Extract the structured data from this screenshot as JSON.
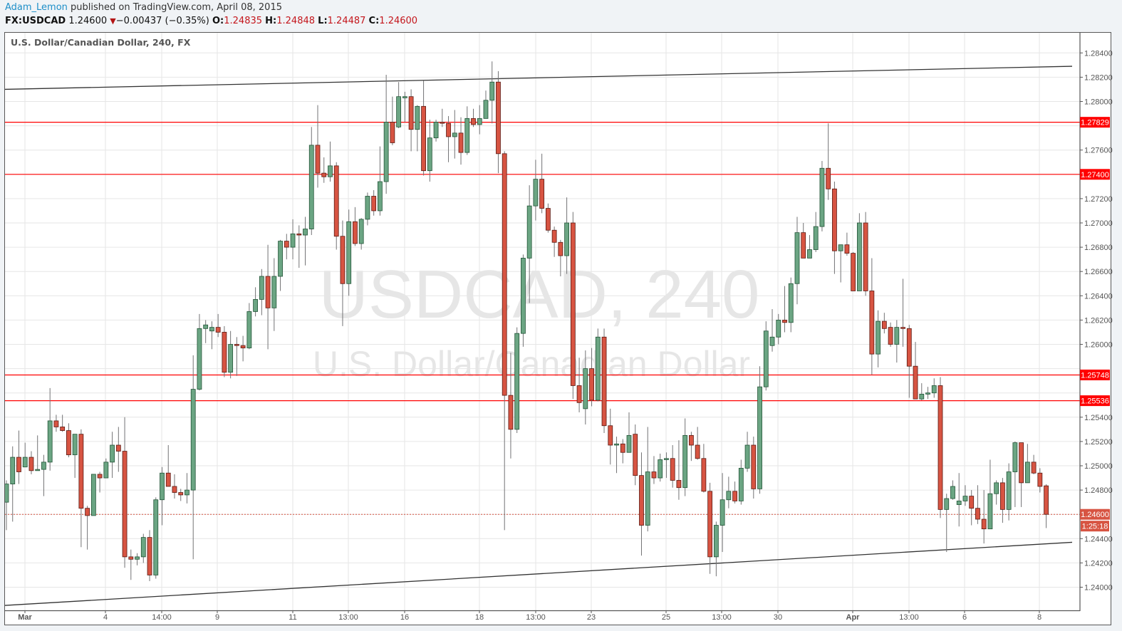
{
  "header": {
    "author": "Adam_Lemon",
    "published": " published on TradingView.com, April 08, 2015",
    "symbol": "FX:USDCAD",
    "last": "1.24600",
    "change": "−0.00437 (−0.35%)",
    "change_direction": "down",
    "o_label": "O:",
    "o": "1.24835",
    "h_label": "H:",
    "h": "1.24848",
    "l_label": "L:",
    "l": "1.24487",
    "c_label": "C:",
    "c": "1.24600"
  },
  "legend": "U.S. Dollar/Canadian Dollar, 240, FX",
  "watermark": {
    "symbol": "USDCAD, 240",
    "description": "U.S. Dollar/Canadian Dollar"
  },
  "colors": {
    "up": "#6ba583",
    "up_border": "#225437",
    "down": "#d75442",
    "down_border": "#5b1a13",
    "wick": "#737375",
    "level": "#ff0000",
    "price_tag": "#d75442"
  },
  "chart_data": {
    "type": "candlestick",
    "interval": "240",
    "ylim": [
      1.2385,
      1.2855
    ],
    "grid": true,
    "y_ticks": [
      "1.24000",
      "1.24200",
      "1.24400",
      "1.24600",
      "1.24800",
      "1.25000",
      "1.25200",
      "1.25400",
      "1.25600",
      "1.25800",
      "1.26000",
      "1.26200",
      "1.26400",
      "1.26600",
      "1.26800",
      "1.27000",
      "1.27200",
      "1.27400",
      "1.27600",
      "1.27800",
      "1.28000",
      "1.28200",
      "1.28400"
    ],
    "x_ticks": [
      {
        "label": "Mar",
        "bold": true
      },
      {
        "label": "4"
      },
      {
        "label": "14:00"
      },
      {
        "label": "9"
      },
      {
        "label": "11"
      },
      {
        "label": "13:00"
      },
      {
        "label": "16"
      },
      {
        "label": "18"
      },
      {
        "label": "13:00"
      },
      {
        "label": "23"
      },
      {
        "label": "25"
      },
      {
        "label": "13:00"
      },
      {
        "label": "30"
      },
      {
        "label": "Apr",
        "bold": true
      },
      {
        "label": "13:00"
      },
      {
        "label": "6"
      },
      {
        "label": "8"
      }
    ],
    "ohlc_fields": [
      "open",
      "high",
      "low",
      "close"
    ],
    "candles": [
      [
        1.247,
        1.2488,
        1.2447,
        1.2485
      ],
      [
        1.2485,
        1.2516,
        1.2454,
        1.2507
      ],
      [
        1.2507,
        1.2529,
        1.2485,
        1.2495
      ],
      [
        1.2499,
        1.2519,
        1.2499,
        1.2507
      ],
      [
        1.2507,
        1.2512,
        1.2493,
        1.2496
      ],
      [
        1.2496,
        1.2525,
        1.2496,
        1.2497
      ],
      [
        1.2497,
        1.2509,
        1.2475,
        1.2503
      ],
      [
        1.2503,
        1.2564,
        1.2496,
        1.2537
      ],
      [
        1.2537,
        1.2542,
        1.2528,
        1.2532
      ],
      [
        1.2532,
        1.2542,
        1.2528,
        1.2529
      ],
      [
        1.2529,
        1.2535,
        1.2507,
        1.2509
      ],
      [
        1.2509,
        1.2526,
        1.249,
        1.2526
      ],
      [
        1.2526,
        1.253,
        1.2433,
        1.2465
      ],
      [
        1.2465,
        1.2467,
        1.2431,
        1.2459
      ],
      [
        1.2459,
        1.2493,
        1.2459,
        1.2493
      ],
      [
        1.2493,
        1.2495,
        1.2478,
        1.249
      ],
      [
        1.249,
        1.2506,
        1.249,
        1.2503
      ],
      [
        1.2503,
        1.2528,
        1.249,
        1.2517
      ],
      [
        1.2517,
        1.2532,
        1.2495,
        1.2512
      ],
      [
        1.2512,
        1.254,
        1.2416,
        1.2425
      ],
      [
        1.2425,
        1.2431,
        1.2406,
        1.2423
      ],
      [
        1.2423,
        1.2428,
        1.2418,
        1.2425
      ],
      [
        1.2425,
        1.2444,
        1.242,
        1.2441
      ],
      [
        1.2441,
        1.2447,
        1.2405,
        1.241
      ],
      [
        1.241,
        1.2474,
        1.2407,
        1.2472
      ],
      [
        1.2472,
        1.2499,
        1.2451,
        1.2494
      ],
      [
        1.2494,
        1.2517,
        1.2483,
        1.2483
      ],
      [
        1.2483,
        1.2493,
        1.2473,
        1.2478
      ],
      [
        1.2478,
        1.2481,
        1.2471,
        1.2476
      ],
      [
        1.2476,
        1.2494,
        1.2469,
        1.248
      ],
      [
        1.248,
        1.2591,
        1.2423,
        1.2563
      ],
      [
        1.2563,
        1.2625,
        1.2562,
        1.2613
      ],
      [
        1.2613,
        1.262,
        1.2601,
        1.2616
      ],
      [
        1.2611,
        1.2619,
        1.2596,
        1.2614
      ],
      [
        1.2614,
        1.2625,
        1.2606,
        1.261
      ],
      [
        1.261,
        1.2615,
        1.2573,
        1.2577
      ],
      [
        1.2577,
        1.2611,
        1.2572,
        1.26
      ],
      [
        1.26,
        1.2606,
        1.2574,
        1.2599
      ],
      [
        1.2599,
        1.2607,
        1.2586,
        1.2597
      ],
      [
        1.2597,
        1.2634,
        1.2596,
        1.2627
      ],
      [
        1.2627,
        1.2647,
        1.2623,
        1.2637
      ],
      [
        1.2637,
        1.2662,
        1.2624,
        1.2656
      ],
      [
        1.2656,
        1.2682,
        1.2596,
        1.263
      ],
      [
        1.263,
        1.2671,
        1.2611,
        1.2656
      ],
      [
        1.2656,
        1.2686,
        1.2644,
        1.2685
      ],
      [
        1.2685,
        1.2691,
        1.267,
        1.268
      ],
      [
        1.268,
        1.2703,
        1.267,
        1.2691
      ],
      [
        1.2691,
        1.2698,
        1.2663,
        1.269
      ],
      [
        1.269,
        1.2705,
        1.2665,
        1.2695
      ],
      [
        1.2695,
        1.2779,
        1.269,
        1.2764
      ],
      [
        1.2764,
        1.2797,
        1.2729,
        1.2741
      ],
      [
        1.2741,
        1.2754,
        1.2733,
        1.2738
      ],
      [
        1.2738,
        1.2767,
        1.2734,
        1.2747
      ],
      [
        1.2747,
        1.275,
        1.2678,
        1.2689
      ],
      [
        1.2689,
        1.2702,
        1.2615,
        1.265
      ],
      [
        1.265,
        1.2711,
        1.264,
        1.2701
      ],
      [
        1.2701,
        1.2713,
        1.2681,
        1.2683
      ],
      [
        1.2683,
        1.2704,
        1.2678,
        1.2703
      ],
      [
        1.2703,
        1.2725,
        1.2698,
        1.2722
      ],
      [
        1.2722,
        1.2727,
        1.2706,
        1.271
      ],
      [
        1.271,
        1.2763,
        1.2706,
        1.2734
      ],
      [
        1.2734,
        1.2822,
        1.2724,
        1.2783
      ],
      [
        1.2783,
        1.2804,
        1.2764,
        1.2766
      ],
      [
        1.2779,
        1.2816,
        1.2778,
        1.2804
      ],
      [
        1.2803,
        1.2808,
        1.2783,
        1.2804
      ],
      [
        1.2804,
        1.281,
        1.2759,
        1.2777
      ],
      [
        1.2777,
        1.2797,
        1.2759,
        1.2796
      ],
      [
        1.2796,
        1.2817,
        1.2739,
        1.2743
      ],
      [
        1.2743,
        1.2785,
        1.2734,
        1.277
      ],
      [
        1.277,
        1.2785,
        1.2767,
        1.2783
      ],
      [
        1.2783,
        1.2794,
        1.2779,
        1.2782
      ],
      [
        1.2782,
        1.2788,
        1.275,
        1.2771
      ],
      [
        1.2771,
        1.2793,
        1.2753,
        1.2774
      ],
      [
        1.2774,
        1.2787,
        1.2748,
        1.2758
      ],
      [
        1.2758,
        1.2796,
        1.2756,
        1.2786
      ],
      [
        1.2786,
        1.2794,
        1.2779,
        1.2781
      ],
      [
        1.2781,
        1.2797,
        1.2773,
        1.2786
      ],
      [
        1.2786,
        1.2809,
        1.2786,
        1.2801
      ],
      [
        1.2801,
        1.2833,
        1.2782,
        1.2816
      ],
      [
        1.2816,
        1.2825,
        1.2741,
        1.2757
      ],
      [
        1.2757,
        1.2759,
        1.2447,
        1.2558
      ],
      [
        1.2558,
        1.2593,
        1.2506,
        1.253
      ],
      [
        1.253,
        1.2614,
        1.2527,
        1.2609
      ],
      [
        1.2609,
        1.2674,
        1.2598,
        1.2671
      ],
      [
        1.2671,
        1.2731,
        1.2634,
        1.2714
      ],
      [
        1.2714,
        1.2752,
        1.2702,
        1.2736
      ],
      [
        1.2736,
        1.2757,
        1.2708,
        1.2712
      ],
      [
        1.2712,
        1.2716,
        1.2692,
        1.2694
      ],
      [
        1.2694,
        1.2697,
        1.2672,
        1.2684
      ],
      [
        1.2684,
        1.2686,
        1.2656,
        1.2673
      ],
      [
        1.2673,
        1.2721,
        1.2658,
        1.27
      ],
      [
        1.27,
        1.2709,
        1.2555,
        1.2566
      ],
      [
        1.2566,
        1.2589,
        1.2544,
        1.2552
      ],
      [
        1.2547,
        1.2595,
        1.2534,
        1.258
      ],
      [
        1.258,
        1.2597,
        1.2549,
        1.2554
      ],
      [
        1.2554,
        1.2613,
        1.2553,
        1.2606
      ],
      [
        1.2606,
        1.2613,
        1.2527,
        1.2533
      ],
      [
        1.2533,
        1.2547,
        1.2501,
        1.2517
      ],
      [
        1.2517,
        1.2524,
        1.2494,
        1.2518
      ],
      [
        1.2518,
        1.2522,
        1.2502,
        1.2511
      ],
      [
        1.2511,
        1.2544,
        1.2511,
        1.2525
      ],
      [
        1.2526,
        1.2534,
        1.2484,
        1.2492
      ],
      [
        1.2492,
        1.2511,
        1.2426,
        1.2451
      ],
      [
        1.2451,
        1.2532,
        1.2446,
        1.2495
      ],
      [
        1.2495,
        1.2508,
        1.2485,
        1.249
      ],
      [
        1.249,
        1.251,
        1.2487,
        1.2505
      ],
      [
        1.2505,
        1.2511,
        1.249,
        1.2506
      ],
      [
        1.2506,
        1.2517,
        1.2482,
        1.2488
      ],
      [
        1.2488,
        1.2521,
        1.2472,
        1.2482
      ],
      [
        1.2482,
        1.2539,
        1.2475,
        1.2525
      ],
      [
        1.2525,
        1.2528,
        1.2504,
        1.2517
      ],
      [
        1.2517,
        1.2532,
        1.2505,
        1.2506
      ],
      [
        1.2506,
        1.2518,
        1.2478,
        1.2479
      ],
      [
        1.2479,
        1.2486,
        1.2411,
        1.2425
      ],
      [
        1.2425,
        1.2454,
        1.2409,
        1.2451
      ],
      [
        1.2451,
        1.2494,
        1.2429,
        1.2472
      ],
      [
        1.2472,
        1.2491,
        1.2465,
        1.2479
      ],
      [
        1.2479,
        1.2487,
        1.2469,
        1.2471
      ],
      [
        1.2471,
        1.2505,
        1.2468,
        1.2498
      ],
      [
        1.2498,
        1.2528,
        1.2495,
        1.2517
      ],
      [
        1.2517,
        1.2524,
        1.2473,
        1.2481
      ],
      [
        1.2481,
        1.2582,
        1.2477,
        1.2565
      ],
      [
        1.2565,
        1.2619,
        1.2562,
        1.2611
      ],
      [
        1.2599,
        1.2629,
        1.2594,
        1.2606
      ],
      [
        1.2606,
        1.2625,
        1.26,
        1.262
      ],
      [
        1.262,
        1.2648,
        1.261,
        1.2618
      ],
      [
        1.2618,
        1.2655,
        1.261,
        1.265
      ],
      [
        1.265,
        1.2705,
        1.2633,
        1.2692
      ],
      [
        1.2692,
        1.27,
        1.2671,
        1.2671
      ],
      [
        1.2671,
        1.269,
        1.2671,
        1.2678
      ],
      [
        1.2678,
        1.2709,
        1.2676,
        1.2697
      ],
      [
        1.2697,
        1.2751,
        1.2693,
        1.2745
      ],
      [
        1.2745,
        1.2782,
        1.2719,
        1.2728
      ],
      [
        1.2728,
        1.2734,
        1.2658,
        1.2677
      ],
      [
        1.2677,
        1.2682,
        1.2651,
        1.2682
      ],
      [
        1.2682,
        1.2692,
        1.2673,
        1.2675
      ],
      [
        1.2675,
        1.2676,
        1.2644,
        1.2644
      ],
      [
        1.2644,
        1.2708,
        1.2644,
        1.27
      ],
      [
        1.27,
        1.2709,
        1.264,
        1.2644
      ],
      [
        1.2644,
        1.2671,
        1.2575,
        1.2592
      ],
      [
        1.2592,
        1.2628,
        1.2581,
        1.2619
      ],
      [
        1.2619,
        1.2626,
        1.2609,
        1.2613
      ],
      [
        1.2614,
        1.2618,
        1.2598,
        1.26
      ],
      [
        1.26,
        1.262,
        1.2585,
        1.2614
      ],
      [
        1.2614,
        1.2654,
        1.2598,
        1.2613
      ],
      [
        1.2613,
        1.2616,
        1.2556,
        1.2582
      ],
      [
        1.2582,
        1.2602,
        1.2555,
        1.2555
      ],
      [
        1.2555,
        1.2568,
        1.2554,
        1.2559
      ],
      [
        1.2559,
        1.2565,
        1.2555,
        1.256
      ],
      [
        1.256,
        1.2572,
        1.2556,
        1.2566
      ],
      [
        1.2566,
        1.2573,
        1.2457,
        1.2464
      ],
      [
        1.2464,
        1.2477,
        1.2429,
        1.2473
      ],
      [
        1.2473,
        1.2488,
        1.2472,
        1.2483
      ],
      [
        1.2468,
        1.2494,
        1.245,
        1.2471
      ],
      [
        1.2471,
        1.2484,
        1.2467,
        1.2475
      ],
      [
        1.2475,
        1.248,
        1.2451,
        1.2465
      ],
      [
        1.2465,
        1.2484,
        1.2452,
        1.2456
      ],
      [
        1.2456,
        1.248,
        1.2436,
        1.2448
      ],
      [
        1.2448,
        1.2505,
        1.2448,
        1.2477
      ],
      [
        1.2477,
        1.2488,
        1.2468,
        1.2486
      ],
      [
        1.2486,
        1.249,
        1.2453,
        1.2464
      ],
      [
        1.2464,
        1.2502,
        1.2455,
        1.2495
      ],
      [
        1.2495,
        1.252,
        1.2466,
        1.2519
      ],
      [
        1.2519,
        1.2519,
        1.2466,
        1.2486
      ],
      [
        1.2486,
        1.2518,
        1.2486,
        1.2503
      ],
      [
        1.2503,
        1.2509,
        1.2493,
        1.2494
      ],
      [
        1.2494,
        1.2498,
        1.2478,
        1.2483
      ],
      [
        1.24835,
        1.24848,
        1.24487,
        1.246
      ]
    ],
    "horizontal_levels": [
      {
        "price": 1.27829,
        "label": "1.27829"
      },
      {
        "price": 1.274,
        "label": "1.27400"
      },
      {
        "price": 1.25748,
        "label": "1.25748"
      },
      {
        "price": 1.25536,
        "label": "1.25536"
      }
    ],
    "trendlines": [
      {
        "name": "upper",
        "start_price": 1.281,
        "end_price": 1.2829
      },
      {
        "name": "lower",
        "start_price": 1.2385,
        "end_price": 1.2437
      }
    ],
    "current_price": {
      "price": 1.246,
      "label": "1.24600",
      "countdown": "1:25:18"
    }
  }
}
